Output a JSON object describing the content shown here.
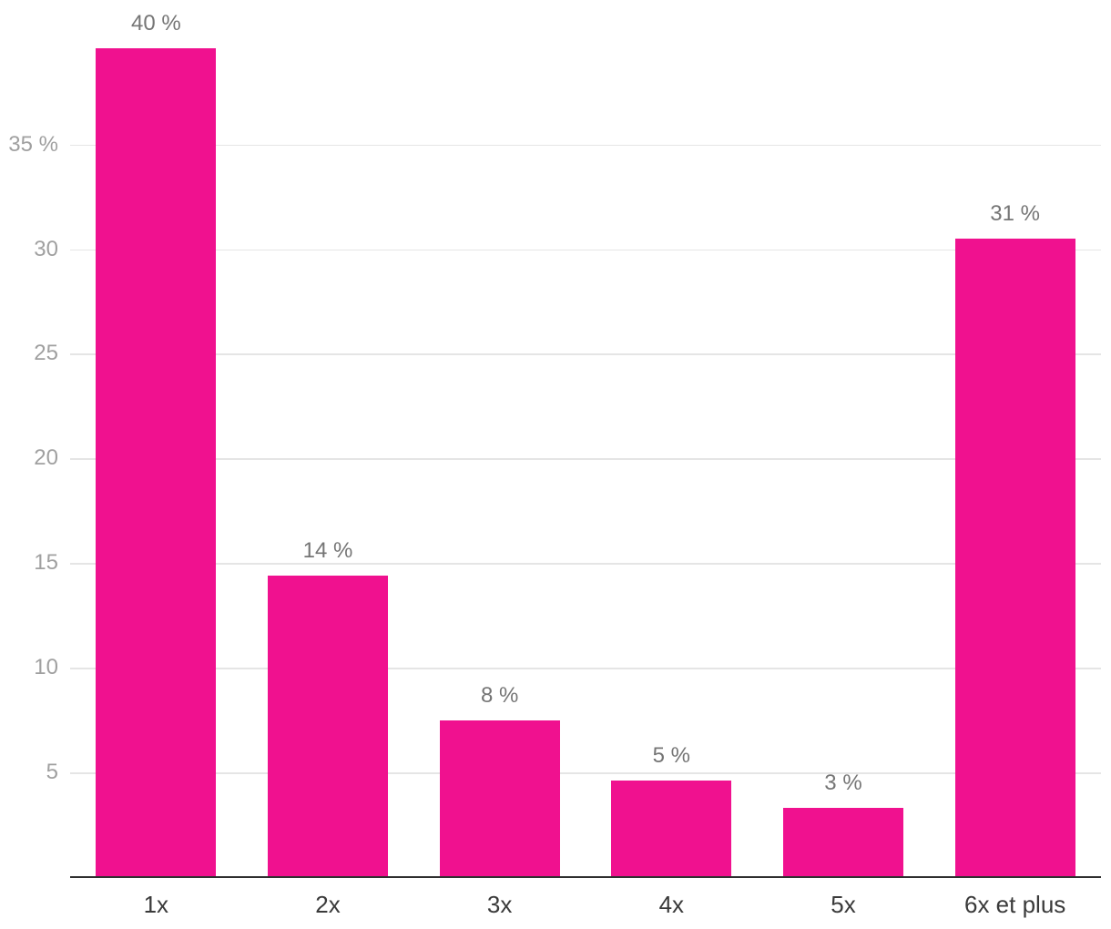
{
  "chart_data": {
    "type": "bar",
    "title": "",
    "xlabel": "",
    "ylabel": "",
    "categories": [
      "1x",
      "2x",
      "3x",
      "4x",
      "5x",
      "6x et plus"
    ],
    "values": [
      39.6,
      14.4,
      7.5,
      4.6,
      3.3,
      30.5
    ],
    "value_labels": [
      "40 %",
      "14 %",
      "8 %",
      "5 %",
      "3 %",
      "31 %"
    ],
    "yticks": [
      5,
      10,
      15,
      20,
      25,
      30,
      35
    ],
    "ytick_labels": [
      "5",
      "10",
      "15",
      "20",
      "25",
      "30",
      "35 %"
    ],
    "ylim": [
      0,
      41.9
    ],
    "grid": "horizontal",
    "legend": "none",
    "colors": {
      "bar": "#F0118F",
      "gridline": "#E5E5E5",
      "axis_line": "#2F2F2F",
      "ytick_label": "#A0A0A0",
      "value_label": "#757575",
      "xtick_label": "#3A3A3A",
      "background": "#FFFFFF"
    }
  }
}
